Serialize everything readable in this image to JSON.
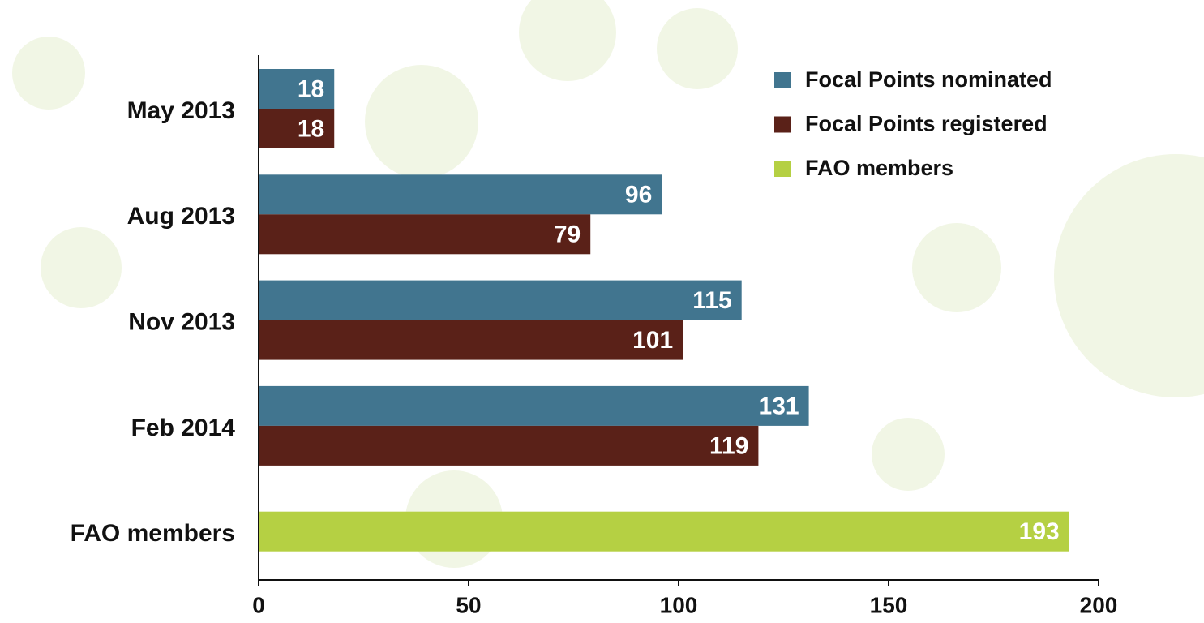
{
  "chart_data": {
    "type": "bar",
    "orientation": "horizontal",
    "categories": [
      "May 2013",
      "Aug 2013",
      "Nov 2013",
      "Feb 2014",
      "FAO members"
    ],
    "series": [
      {
        "name": "Focal Points nominated",
        "color": "#41758f",
        "values": [
          18,
          96,
          115,
          131,
          null
        ]
      },
      {
        "name": "Focal Points registered",
        "color": "#5a2118",
        "values": [
          18,
          79,
          101,
          119,
          null
        ]
      },
      {
        "name": "FAO members",
        "color": "#b5d043",
        "values": [
          null,
          null,
          null,
          null,
          193
        ]
      }
    ],
    "xlim": [
      0,
      200
    ],
    "xticks": [
      0,
      50,
      100,
      150,
      200
    ],
    "legend": "top-right",
    "data_labels": true
  }
}
